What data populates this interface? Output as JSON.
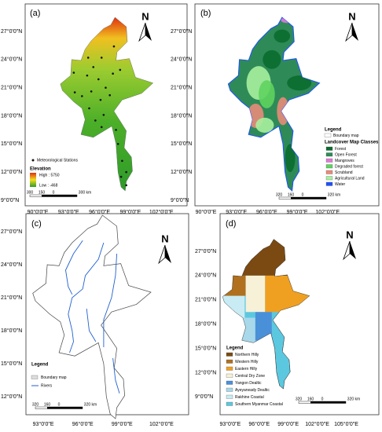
{
  "panels": [
    {
      "label": "(a)",
      "lat_labels": [
        "27°0'0\"N",
        "24°0'0\"N",
        "21°0'0\"N",
        "18°0'0\"N",
        "15°0'0\"N",
        "12°0'0\"N",
        "9°0'0\"N"
      ],
      "lon_labels": [
        "90°0'0\"E",
        "93°0'0\"E",
        "96°0'0\"E",
        "99°0'0\"E",
        "102°0'0\"E"
      ],
      "north": "N",
      "legend": {
        "stations": "Meteorological Stations",
        "title": "Elevation",
        "high": "High : 5750",
        "low": "Low : -468"
      },
      "scale_labels": [
        "300",
        "150",
        "0",
        "300 km"
      ]
    },
    {
      "label": "(b)",
      "lat_labels": [
        "27°0'0\"N",
        "24°0'0\"N",
        "21°0'0\"N",
        "18°0'0\"N",
        "15°0'0\"N",
        "12°0'0\"N",
        "9°0'0\"N"
      ],
      "lon_labels": [
        "90°0'0\"E",
        "93°0'0\"E",
        "96°0'0\"E",
        "99°0'0\"E",
        "102°0'0\"E"
      ],
      "north": "N",
      "legend": {
        "title": "Legend",
        "boundary": "Boundary map",
        "subtitle": "Landcover Map Classes",
        "items": [
          {
            "name": "Forest",
            "color": "#0b6b2f"
          },
          {
            "name": "Open Forest",
            "color": "#2e8b57"
          },
          {
            "name": "Mangroves",
            "color": "#e07ad6"
          },
          {
            "name": "Degraded forest",
            "color": "#5fd35f"
          },
          {
            "name": "Scrubland",
            "color": "#e88b7a"
          },
          {
            "name": "Agricultural Land",
            "color": "#a8f0a0"
          },
          {
            "name": "Water",
            "color": "#1e50ff"
          }
        ]
      },
      "scale_labels": [
        "320",
        "160",
        "0",
        "320 km"
      ]
    },
    {
      "label": "(c)",
      "lat_labels": [
        "27°0'0\"N",
        "24°0'0\"N",
        "21°0'0\"N",
        "18°0'0\"N",
        "15°0'0\"N",
        "12°0'0\"N"
      ],
      "lon_labels": [
        "93°0'0\"E",
        "96°0'0\"E",
        "99°0'0\"E",
        "102°0'0\"E"
      ],
      "north": "N",
      "legend": {
        "title": "Legend",
        "boundary": "Boundary map",
        "rivers": "Rivers"
      },
      "scale_labels": [
        "320",
        "160",
        "0",
        "320 km"
      ]
    },
    {
      "label": "(d)",
      "lat_labels": [
        "27°0'0\"N",
        "24°0'0\"N",
        "21°0'0\"N",
        "18°0'0\"N",
        "15°0'0\"N",
        "12°0'0\"N",
        "9°0'0\"N"
      ],
      "lon_labels": [
        "93°0'0\"E",
        "96°0'0\"E",
        "99°0'0\"E",
        "102°0'0\"E",
        "105°0'0\"E"
      ],
      "north": "N",
      "legend": {
        "title": "Legend",
        "items": [
          {
            "name": "Northern Hilly",
            "color": "#7b4a12"
          },
          {
            "name": "Western Hilly",
            "color": "#b0701e"
          },
          {
            "name": "Eastern Hilly",
            "color": "#f0a020"
          },
          {
            "name": "Central Dry Zone",
            "color": "#f7f1d8"
          },
          {
            "name": "Yangon Dealtic",
            "color": "#4a90d9"
          },
          {
            "name": "Ayeyarwady Dealtic",
            "color": "#a8d8ea"
          },
          {
            "name": "Rakhine Coastal",
            "color": "#c9ecf4"
          },
          {
            "name": "Southern Myanmar Coastal",
            "color": "#5bc8e0"
          }
        ]
      },
      "scale_labels": [
        "320",
        "160",
        "0",
        "320 km"
      ]
    }
  ]
}
